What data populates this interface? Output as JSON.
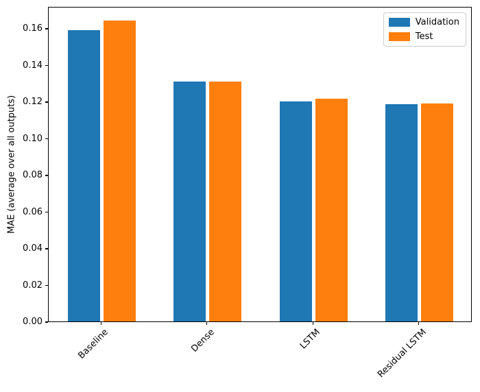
{
  "figure": {
    "background": "#ffffff",
    "frame_color": "#000000"
  },
  "chart_data": {
    "type": "bar",
    "categories": [
      "Baseline",
      "Dense",
      "LSTM",
      "Residual LSTM"
    ],
    "series": [
      {
        "name": "Validation",
        "color": "#1f77b4",
        "values": [
          0.159,
          0.131,
          0.12,
          0.1185
        ]
      },
      {
        "name": "Test",
        "color": "#ff7f0e",
        "values": [
          0.164,
          0.131,
          0.1215,
          0.119
        ]
      }
    ],
    "title": "",
    "xlabel": "",
    "ylabel": "MAE (average over all outputs)",
    "ylim": [
      0,
      0.172
    ],
    "yticks": [
      0.0,
      0.02,
      0.04,
      0.06,
      0.08,
      0.1,
      0.12,
      0.14,
      0.16
    ],
    "ytick_decimals": 2,
    "xtick_rotation": 45,
    "grid": false,
    "legend_position": "upper right"
  }
}
